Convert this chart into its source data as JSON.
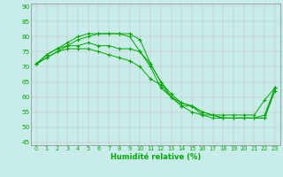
{
  "xlabel": "Humidité relative (%)",
  "xlim": [
    -0.5,
    23.5
  ],
  "ylim": [
    44,
    91
  ],
  "yticks": [
    45,
    50,
    55,
    60,
    65,
    70,
    75,
    80,
    85,
    90
  ],
  "xticks": [
    0,
    1,
    2,
    3,
    4,
    5,
    6,
    7,
    8,
    9,
    10,
    11,
    12,
    13,
    14,
    15,
    16,
    17,
    18,
    19,
    20,
    21,
    22,
    23
  ],
  "bg_color": "#c8ece9",
  "grid_color_major": "#b0c8c4",
  "grid_color_minor": "#d0e8e4",
  "line_color": "#00aa00",
  "lines": [
    [
      71,
      74,
      76,
      78,
      80,
      81,
      81,
      81,
      81,
      80,
      75,
      70,
      63,
      60,
      57,
      57,
      54,
      54,
      54,
      54,
      54,
      54,
      59,
      63
    ],
    [
      71,
      74,
      76,
      77,
      79,
      80,
      81,
      81,
      81,
      81,
      79,
      71,
      65,
      61,
      58,
      57,
      55,
      54,
      53,
      53,
      53,
      53,
      53,
      62
    ],
    [
      71,
      73,
      75,
      77,
      77,
      78,
      77,
      77,
      76,
      76,
      75,
      71,
      65,
      60,
      58,
      57,
      55,
      54,
      53,
      53,
      53,
      53,
      53,
      63
    ],
    [
      71,
      73,
      75,
      76,
      76,
      76,
      75,
      74,
      73,
      72,
      70,
      66,
      64,
      60,
      57,
      55,
      54,
      53,
      53,
      53,
      53,
      53,
      54,
      63
    ]
  ]
}
